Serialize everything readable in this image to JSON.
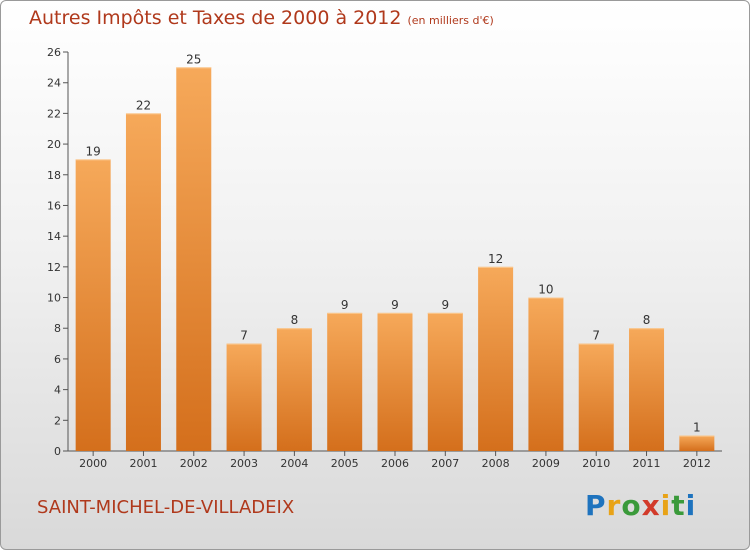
{
  "header": {
    "title": "Autres Impôts et Taxes de 2000 à 2012",
    "unit": "(en milliers d'€)"
  },
  "footer": {
    "city": "SAINT-MICHEL-DE-VILLADEIX",
    "brand": "Proxiti"
  },
  "colors": {
    "accent": "#b0391c",
    "bar_top": "#f6a95a",
    "bar_bottom": "#d46f1c"
  },
  "chart_data": {
    "type": "bar",
    "categories": [
      "2000",
      "2001",
      "2002",
      "2003",
      "2004",
      "2005",
      "2006",
      "2007",
      "2008",
      "2009",
      "2010",
      "2011",
      "2012"
    ],
    "values": [
      19,
      22,
      25,
      7,
      8,
      9,
      9,
      9,
      12,
      10,
      7,
      8,
      1
    ],
    "title": "Autres Impôts et Taxes de 2000 à 2012",
    "subtitle": "(en milliers d'€)",
    "xlabel": "",
    "ylabel": "",
    "ylim": [
      0,
      26
    ],
    "yticks": [
      0,
      2,
      4,
      6,
      8,
      10,
      12,
      14,
      16,
      18,
      20,
      22,
      24,
      26
    ],
    "grid": false,
    "legend": "none"
  }
}
